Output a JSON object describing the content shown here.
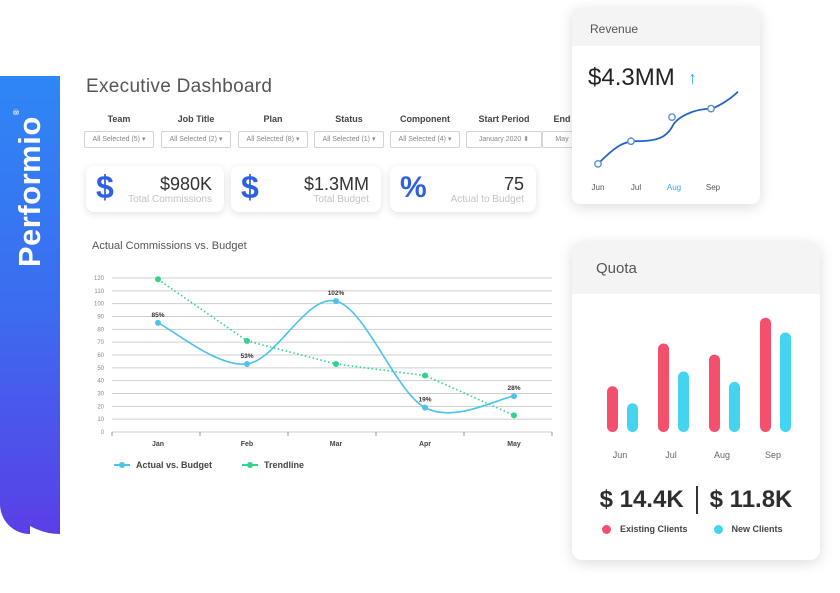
{
  "brand": {
    "name": "Performio",
    "mark": "®",
    "color_top": "#2f86f5",
    "color_bottom": "#5a3fe6"
  },
  "page": {
    "title": "Executive Dashboard"
  },
  "filters": [
    {
      "label": "Team",
      "value": "All Selected (5) ▾"
    },
    {
      "label": "Job Title",
      "value": "All Selected (2) ▾"
    },
    {
      "label": "Plan",
      "value": "All Selected (8) ▾"
    },
    {
      "label": "Status",
      "value": "All Selected (1) ▾"
    },
    {
      "label": "Component",
      "value": "All Selected (4) ▾"
    },
    {
      "label": "Start Period",
      "value": "January 2020 ⬍"
    },
    {
      "label": "End",
      "value": "May"
    }
  ],
  "kpis": [
    {
      "icon": "dollar-icon",
      "symbol": "$",
      "value": "$980K",
      "label": "Total Commissions"
    },
    {
      "icon": "dollar-icon",
      "symbol": "$",
      "value": "$1.3MM",
      "label": "Total Budget"
    },
    {
      "icon": "percent-icon",
      "symbol": "%",
      "value": "75",
      "label": "Actual to Budget"
    }
  ],
  "chart_data": [
    {
      "type": "line",
      "title": "Actual Commissions vs. Budget",
      "categories": [
        "Jan",
        "Feb",
        "Mar",
        "Apr",
        "May"
      ],
      "ylim": [
        0,
        120
      ],
      "yticks": [
        0,
        10,
        20,
        30,
        40,
        50,
        60,
        70,
        80,
        90,
        100,
        110,
        120
      ],
      "grid": true,
      "legend": "bottom-left",
      "series": [
        {
          "name": "Actual vs. Budget",
          "values": [
            85,
            53,
            102,
            19,
            28
          ],
          "labels": [
            "85%",
            "53%",
            "102%",
            "19%",
            "28%"
          ],
          "color": "#4cc3ea",
          "style": "smooth"
        },
        {
          "name": "Trendline",
          "values": [
            119,
            71,
            53,
            44,
            13
          ],
          "color": "#2fd38a",
          "style": "dotted"
        }
      ]
    },
    {
      "type": "line",
      "title": "Revenue",
      "value": "$4.3MM",
      "trend": "up",
      "categories": [
        "Jun",
        "Jul",
        "Aug",
        "Sep"
      ],
      "highlight": "Aug",
      "values": [
        1.0,
        2.6,
        4.3,
        4.9
      ],
      "ylim": [
        0,
        6.5
      ],
      "color": "#2563c9",
      "accent": "#36a7f0"
    },
    {
      "type": "bar",
      "title": "Quota",
      "categories": [
        "Jun",
        "Jul",
        "Aug",
        "Sep"
      ],
      "ylim": [
        0,
        160
      ],
      "series": [
        {
          "name": "Existing Clients",
          "values": [
            62,
            120,
            105,
            155
          ],
          "color": "#f4506e"
        },
        {
          "name": "New Clients",
          "values": [
            39,
            82,
            68,
            135
          ],
          "color": "#45d4f0"
        }
      ],
      "totals": [
        "$ 14.4K",
        "$ 11.8K"
      ],
      "legend": "bottom"
    }
  ]
}
